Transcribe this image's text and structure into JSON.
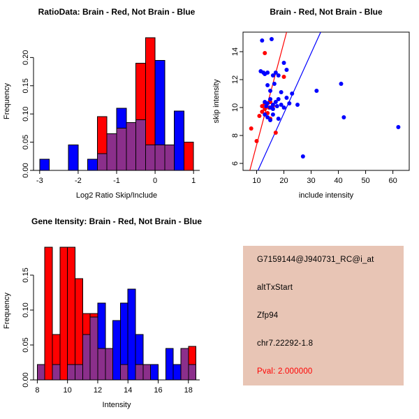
{
  "page": {
    "background": "#ffffff",
    "accent_red": "#ff0000",
    "accent_blue": "#0000ff"
  },
  "chart_data": [
    {
      "type": "bar",
      "variant": "overlaid-histogram",
      "title": "RatioData: Brain - Red, Not Brain - Blue",
      "xlabel": "Log2 Ratio Skip/Include",
      "ylabel": "Frequency",
      "bin_start": -3,
      "bin_width": 0.25,
      "xlim": [
        -3.16,
        1.16
      ],
      "ylim": [
        0,
        0.245
      ],
      "xticks": [
        -3,
        -2,
        -1,
        0,
        1
      ],
      "yticks": [
        0,
        0.05,
        0.1,
        0.15,
        0.2
      ],
      "ytick_labels": [
        "0.00",
        "0.05",
        "0.10",
        "0.15",
        "0.20"
      ],
      "overlap_color": "#8b2f8b",
      "grid": false,
      "legend": "none",
      "series": [
        {
          "name": "Brain",
          "color": "#ff0000",
          "values": [
            0,
            0,
            0,
            0,
            0,
            0,
            0.095,
            0.065,
            0.075,
            0.085,
            0.19,
            0.235,
            0.045,
            0.045,
            0,
            0.05
          ]
        },
        {
          "name": "Not Brain",
          "color": "#0000ff",
          "values": [
            0.02,
            0,
            0,
            0.045,
            0,
            0.02,
            0.03,
            0.065,
            0.11,
            0.085,
            0.09,
            0.045,
            0.195,
            0.045,
            0.105,
            0
          ]
        }
      ]
    },
    {
      "type": "scatter",
      "title": "Brain - Red, Not Brain - Blue",
      "xlabel": "include intensity",
      "ylabel": "skip intensity",
      "xlim": [
        5,
        66
      ],
      "ylim": [
        5.5,
        15.4
      ],
      "xticks": [
        10,
        20,
        30,
        40,
        50,
        60
      ],
      "yticks": [
        6,
        8,
        10,
        12,
        14
      ],
      "grid": false,
      "legend": "none",
      "series": [
        {
          "name": "Brain",
          "color": "#ff0000",
          "points": [
            [
              8,
              8.5
            ],
            [
              10,
              7.6
            ],
            [
              11,
              9.4
            ],
            [
              12,
              9.7
            ],
            [
              12,
              10.1
            ],
            [
              13,
              9.9
            ],
            [
              13,
              10.3
            ],
            [
              14,
              9.6
            ],
            [
              14.5,
              10
            ],
            [
              15,
              10.4
            ],
            [
              15,
              9.2
            ],
            [
              16,
              10.1
            ],
            [
              20,
              12.2
            ],
            [
              13,
              13.9
            ],
            [
              17,
              8.2
            ]
          ]
        },
        {
          "name": "Not Brain",
          "color": "#0000ff",
          "points": [
            [
              11.5,
              12.6
            ],
            [
              12,
              14.8
            ],
            [
              12.5,
              12.5
            ],
            [
              13,
              12.4
            ],
            [
              14,
              12.5
            ],
            [
              15.5,
              14.9
            ],
            [
              16,
              12.3
            ],
            [
              14,
              11.6
            ],
            [
              15,
              11.2
            ],
            [
              16.5,
              11.7
            ],
            [
              17,
              12.5
            ],
            [
              18,
              12.3
            ],
            [
              19,
              11.1
            ],
            [
              20,
              13.2
            ],
            [
              21,
              12.7
            ],
            [
              13,
              10.4
            ],
            [
              13.5,
              10.1
            ],
            [
              14,
              10.3
            ],
            [
              15,
              10.6
            ],
            [
              15,
              10
            ],
            [
              16,
              10.2
            ],
            [
              16,
              9.9
            ],
            [
              17,
              10.4
            ],
            [
              17.5,
              10.1
            ],
            [
              18,
              10.6
            ],
            [
              19,
              10.2
            ],
            [
              20,
              10
            ],
            [
              21,
              10.7
            ],
            [
              22,
              10.3
            ],
            [
              13,
              9.5
            ],
            [
              14,
              9.3
            ],
            [
              15,
              9.1
            ],
            [
              16,
              9.5
            ],
            [
              18,
              9.2
            ],
            [
              23,
              11
            ],
            [
              25,
              10.2
            ],
            [
              27,
              6.5
            ],
            [
              32,
              11.2
            ],
            [
              41,
              11.7
            ],
            [
              42,
              9.3
            ],
            [
              62,
              8.6
            ]
          ]
        }
      ],
      "lines": [
        {
          "color": "#ff0000",
          "x1": 7.5,
          "y1": 5.5,
          "x2": 21,
          "y2": 15.4
        },
        {
          "color": "#0000ff",
          "x1": 10.5,
          "y1": 5.5,
          "x2": 33.5,
          "y2": 15.4
        }
      ]
    },
    {
      "type": "bar",
      "variant": "overlaid-histogram",
      "title": "Gene Itensity: Brain - Red, Not Brain - Blue",
      "xlabel": "Intensity",
      "ylabel": "Frequency",
      "bin_start": 8,
      "bin_width": 0.5,
      "xlim": [
        7.75,
        18.75
      ],
      "ylim": [
        0,
        0.198
      ],
      "xticks": [
        8,
        10,
        12,
        14,
        16,
        18
      ],
      "yticks": [
        0,
        0.05,
        0.1,
        0.15
      ],
      "ytick_labels": [
        "0.00",
        "0.05",
        "0.10",
        "0.15"
      ],
      "overlap_color": "#8b2f8b",
      "grid": false,
      "legend": "none",
      "series": [
        {
          "name": "Brain",
          "color": "#ff0000",
          "values": [
            0.022,
            0.19,
            0.065,
            0.19,
            0.19,
            0.145,
            0.095,
            0.095,
            0.045,
            0.045,
            0,
            0.022,
            0,
            0.022,
            0.022,
            0,
            0,
            0,
            0,
            0.045,
            0.048
          ]
        },
        {
          "name": "Not Brain",
          "color": "#0000ff",
          "values": [
            0.022,
            0,
            0.022,
            0,
            0.022,
            0.022,
            0.065,
            0.09,
            0.11,
            0.045,
            0.085,
            0.11,
            0.13,
            0.065,
            0.022,
            0.022,
            0,
            0.045,
            0.022,
            0.045,
            0.022
          ]
        }
      ]
    }
  ],
  "info_panel": {
    "background": "#e8c5b5",
    "text_color": "#000000",
    "probe_id": "G7159144@J940731_RC@i_at",
    "event_type": "altTxStart",
    "gene": "Zfp94",
    "location": "chr7.22292-1.8",
    "pval": "Pval: 2.000000",
    "pval_color": "#ff0000"
  }
}
